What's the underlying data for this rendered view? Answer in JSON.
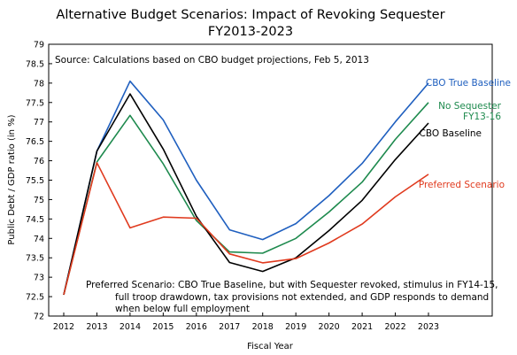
{
  "chart_data": {
    "type": "line",
    "title": "Alternative Budget Scenarios:  Impact of Revoking Sequester",
    "subtitle": "FY2013-2023",
    "source_note": "Source:  Calculations based on CBO budget projections, Feb 5, 2013",
    "footnote": [
      "Preferred Scenario:  CBO True Baseline, but with Sequester revoked, stimulus in FY14-15,",
      "full troop drawdown, tax provisions not extended, and GDP responds to demand",
      "when below full employment"
    ],
    "xlabel": "Fiscal Year",
    "ylabel": "Public Debt / GDP ratio (in %)",
    "ylim": [
      72,
      79
    ],
    "y_ticks": [
      "72",
      "72.5",
      "73",
      "73.5",
      "74",
      "74.5",
      "75",
      "75.5",
      "76",
      "76.5",
      "77",
      "77.5",
      "78",
      "78.5",
      "79"
    ],
    "x": [
      "2012",
      "2013",
      "2014",
      "2015",
      "2016",
      "2017",
      "2018",
      "2019",
      "2020",
      "2021",
      "2022",
      "2023"
    ],
    "grid": false,
    "series": [
      {
        "name": "CBO True Baseline",
        "color": "#1f5fbf",
        "values": [
          72.55,
          76.25,
          78.05,
          77.05,
          75.5,
          74.22,
          73.97,
          74.38,
          75.1,
          75.93,
          77.0,
          78.0
        ]
      },
      {
        "name": "No Sequester FY13-16",
        "label_lines": [
          "No Sequester",
          "FY13-16"
        ],
        "color": "#1e8a4e",
        "values": [
          72.55,
          75.97,
          77.17,
          75.92,
          74.46,
          73.65,
          73.62,
          74.0,
          74.68,
          75.45,
          76.55,
          77.5
        ]
      },
      {
        "name": "CBO Baseline",
        "color": "#000000",
        "values": [
          72.55,
          76.25,
          77.72,
          76.3,
          74.57,
          73.38,
          73.15,
          73.5,
          74.2,
          74.98,
          76.03,
          76.97
        ]
      },
      {
        "name": "Preferred Scenario",
        "color": "#e03a1e",
        "values": [
          72.55,
          75.95,
          74.27,
          74.55,
          74.52,
          73.6,
          73.37,
          73.48,
          73.88,
          74.37,
          75.07,
          75.65
        ]
      }
    ]
  }
}
